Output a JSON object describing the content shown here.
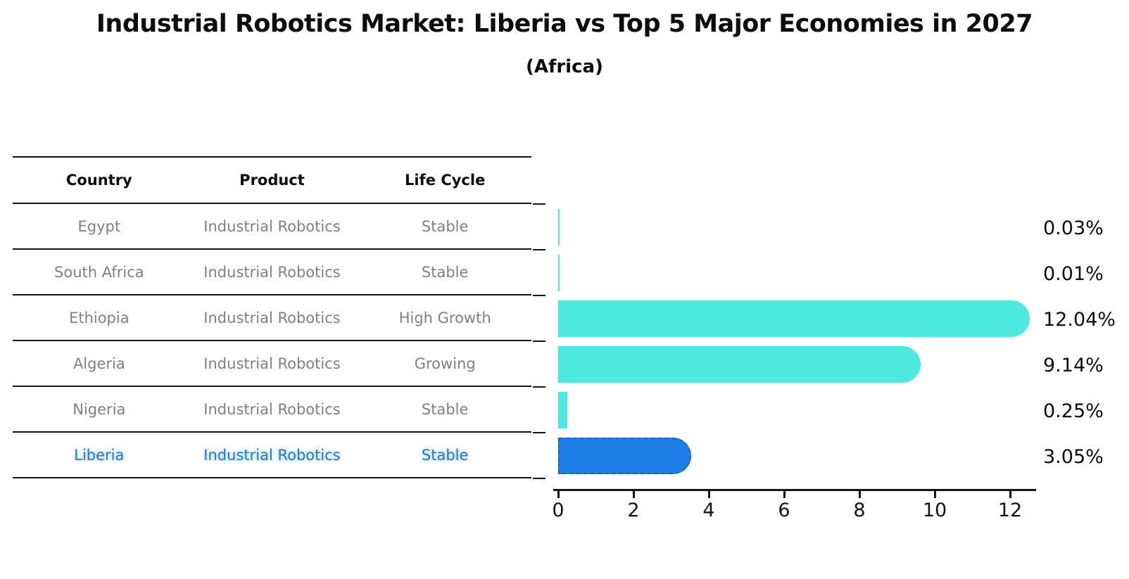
{
  "title": "Industrial Robotics Market: Liberia vs Top 5 Major Economies in 2027",
  "subtitle": "(Africa)",
  "table": {
    "headers": [
      "Country",
      "Product",
      "Life Cycle"
    ],
    "rows": [
      {
        "country": "Egypt",
        "product": "Industrial Robotics",
        "life_cycle": "Stable"
      },
      {
        "country": "South Africa",
        "product": "Industrial Robotics",
        "life_cycle": "Stable"
      },
      {
        "country": "Ethiopia",
        "product": "Industrial Robotics",
        "life_cycle": "High Growth"
      },
      {
        "country": "Algeria",
        "product": "Industrial Robotics",
        "life_cycle": "Growing"
      },
      {
        "country": "Nigeria",
        "product": "Industrial Robotics",
        "life_cycle": "Stable"
      },
      {
        "country": "Liberia",
        "product": "Industrial Robotics",
        "life_cycle": "Stable"
      }
    ],
    "highlight_row": "Liberia"
  },
  "chart_data": {
    "type": "bar",
    "orientation": "horizontal",
    "categories": [
      "Egypt",
      "South Africa",
      "Ethiopia",
      "Algeria",
      "Nigeria",
      "Liberia"
    ],
    "values": [
      0.03,
      0.01,
      12.04,
      9.14,
      0.25,
      3.05
    ],
    "value_labels": [
      "0.03%",
      "0.01%",
      "12.04%",
      "9.14%",
      "0.25%",
      "3.05%"
    ],
    "xticks": [
      0,
      2,
      4,
      6,
      8,
      10,
      12
    ],
    "xlim": [
      0,
      12.7
    ],
    "grid": false,
    "legend": "none",
    "bar_color": "#4DE8E0",
    "highlight_bar_color": "#1E7FE8",
    "highlight_index": 5,
    "highlight_text_color": "#2878C0"
  }
}
